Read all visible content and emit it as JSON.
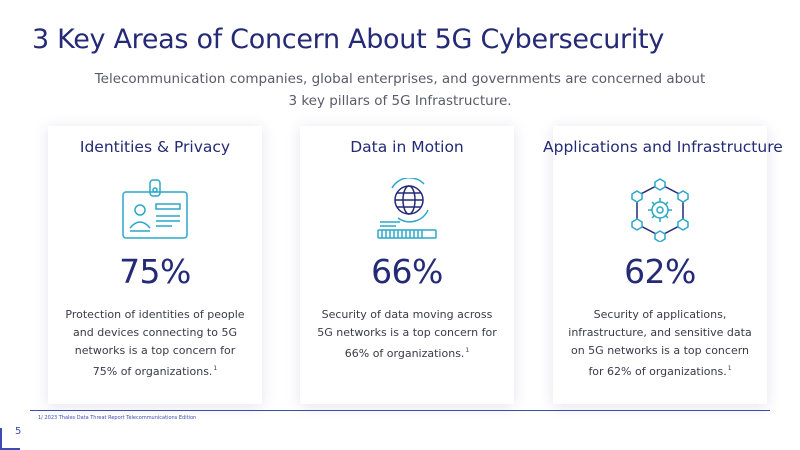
{
  "title": "3 Key Areas of Concern About 5G Cybersecurity",
  "subtitle": {
    "line1": "Telecommunication companies, global enterprises, and governments are concerned about",
    "line2": "3 key pillars of 5G Infrastructure."
  },
  "cards": [
    {
      "heading": "Identities & Privacy",
      "icon": "id-badge-icon",
      "percent": "75%",
      "description": "Protection of identities of people and devices connecting to 5G networks is a top concern for 75% of organizations.",
      "footnote_ref": "1"
    },
    {
      "heading": "Data in Motion",
      "icon": "globe-data-transfer-icon",
      "percent": "66%",
      "description": "Security of data moving across 5G networks is a top concern for 66% of organizations.",
      "footnote_ref": "1"
    },
    {
      "heading": "Applications and Infrastructure",
      "icon": "gear-network-icon",
      "percent": "62%",
      "description": "Security of applications, infrastructure, and sensitive data on 5G networks is a top concern for 62% of organizations.",
      "footnote_ref": "1"
    }
  ],
  "footnote": "1/ 2023 Thales Data Threat Report Telecommunications Edition",
  "page_number": "5",
  "colors": {
    "primary": "#242a75",
    "accent": "#3c4cb4",
    "icon": "#2aa8c8"
  }
}
